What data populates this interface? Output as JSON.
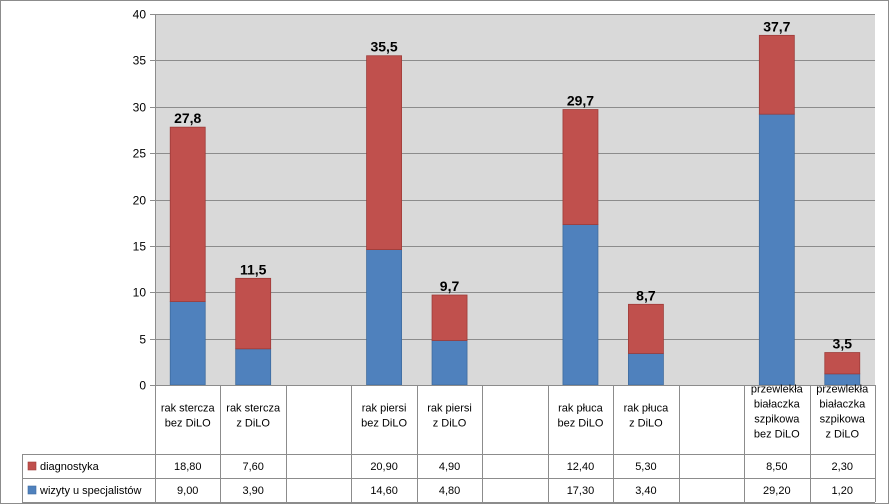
{
  "chart_data": {
    "type": "bar",
    "stacked": true,
    "grid": true,
    "legend_placement": "data table (bottom)",
    "ylim": [
      0,
      40
    ],
    "yticks": [
      "0",
      "5",
      "10",
      "15",
      "20",
      "25",
      "30",
      "35",
      "40"
    ],
    "categories": [
      {
        "lines": [
          "rak stercza",
          "bez DiLO"
        ]
      },
      {
        "lines": [
          "rak stercza",
          "z DiLO"
        ]
      },
      {
        "lines": []
      },
      {
        "lines": [
          "rak piersi",
          "bez DiLO"
        ]
      },
      {
        "lines": [
          "rak piersi",
          "z DiLO"
        ]
      },
      {
        "lines": []
      },
      {
        "lines": [
          "rak płuca",
          "bez DiLO"
        ]
      },
      {
        "lines": [
          "rak płuca",
          " z  DiLO"
        ]
      },
      {
        "lines": []
      },
      {
        "lines": [
          "przewlekła",
          "białaczka",
          "szpikowa",
          "bez DiLO"
        ]
      },
      {
        "lines": [
          "przewlekła",
          "białaczka",
          "szpikowa",
          "z DiLO"
        ]
      }
    ],
    "series": [
      {
        "name": "wizyty u specjalistów",
        "color": "#4f81bd",
        "values": [
          9.0,
          3.9,
          null,
          14.6,
          4.8,
          null,
          17.3,
          3.4,
          null,
          29.2,
          1.2
        ],
        "labels": [
          "9,00",
          "3,90",
          "",
          "14,60",
          "4,80",
          "",
          "17,30",
          "3,40",
          "",
          "29,20",
          "1,20"
        ]
      },
      {
        "name": "diagnostyka",
        "color": "#c0504d",
        "values": [
          18.8,
          7.6,
          null,
          20.9,
          4.9,
          null,
          12.4,
          5.3,
          null,
          8.5,
          2.3
        ],
        "labels": [
          "18,80",
          "7,60",
          "",
          "20,90",
          "4,90",
          "",
          "12,40",
          "5,30",
          "",
          "8,50",
          "2,30"
        ]
      }
    ],
    "totals": [
      {
        "index": 0,
        "label": "27,8"
      },
      {
        "index": 1,
        "label": "11,5"
      },
      {
        "index": 3,
        "label": "35,5"
      },
      {
        "index": 4,
        "label": "9,7"
      },
      {
        "index": 6,
        "label": "29,7"
      },
      {
        "index": 7,
        "label": "8,7"
      },
      {
        "index": 9,
        "label": "37,7"
      },
      {
        "index": 10,
        "label": "3,5"
      }
    ]
  }
}
